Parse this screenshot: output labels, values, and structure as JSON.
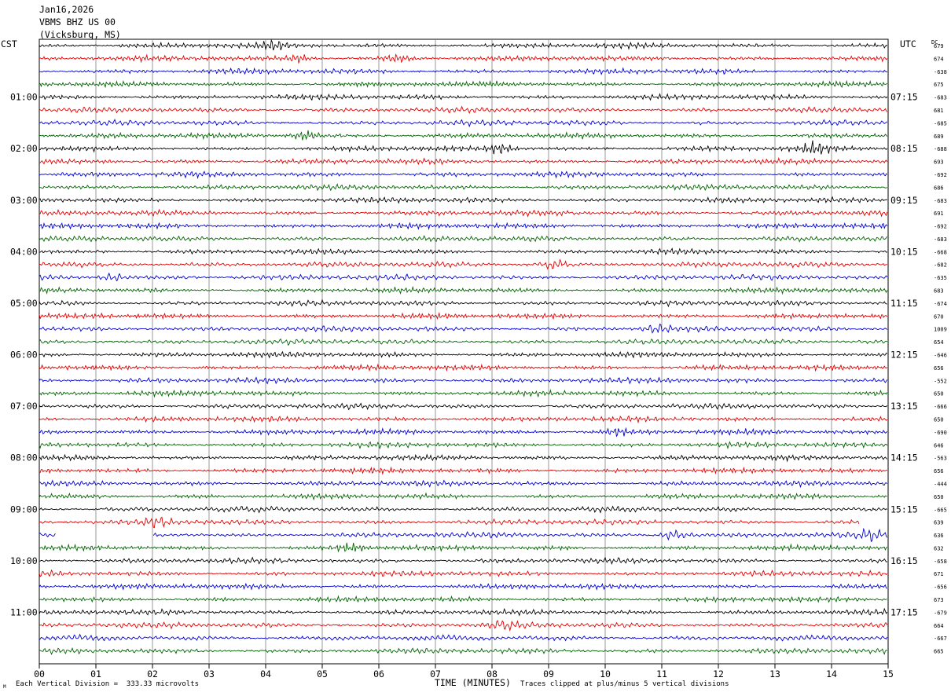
{
  "header": {
    "date": "Jan16,2026",
    "station": "VBMS BHZ US 00",
    "location": "(Vicksburg, MS)"
  },
  "left_tz": "CST",
  "right_tz": "UTC",
  "dc_label": "DC",
  "footer": {
    "scale": "Each Vertical Division =  333.33 microvolts",
    "xlabel": "TIME (MINUTES)",
    "clip_note": "Traces clipped at plus/minus 5 vertical divisions",
    "mark": "M"
  },
  "colors": {
    "black": "#000000",
    "red": "#e00000",
    "blue": "#0000d0",
    "green": "#006400",
    "grid": "#808080"
  },
  "chart_data": {
    "type": "line",
    "title": "",
    "xlabel": "TIME (MINUTES)",
    "xlim": [
      0,
      15
    ],
    "x_ticks": [
      "00",
      "01",
      "02",
      "03",
      "04",
      "05",
      "06",
      "07",
      "08",
      "09",
      "10",
      "11",
      "12",
      "13",
      "14",
      "15"
    ],
    "rows_per_hour": 4,
    "trace_color_cycle": [
      "black",
      "red",
      "blue",
      "green"
    ],
    "left_hour_labels": [
      "01:00",
      "02:00",
      "03:00",
      "04:00",
      "05:00",
      "06:00",
      "07:00",
      "08:00",
      "09:00",
      "10:00",
      "11:00"
    ],
    "right_hour_labels": [
      "07:15",
      "08:15",
      "09:15",
      "10:15",
      "11:15",
      "12:15",
      "13:15",
      "14:15",
      "15:15",
      "16:15",
      "17:15"
    ],
    "dc_offsets": [
      "679",
      "674",
      "-638",
      "675",
      "-683",
      "681",
      "-685",
      "689",
      "-688",
      "693",
      "-692",
      "686",
      "-683",
      "691",
      "-692",
      "-683",
      "-668",
      "-682",
      "-635",
      "683",
      "-674",
      "670",
      "1009",
      "654",
      "-646",
      "656",
      "-552",
      "650",
      "-666",
      "650",
      "-690",
      "646",
      "-563",
      "656",
      "-444",
      "650",
      "-665",
      "639",
      "636",
      "632",
      "-658",
      "671",
      "-656",
      "673",
      "-679",
      "664",
      "-667",
      "665"
    ],
    "events": [
      {
        "row": 0,
        "minute": 4.15,
        "amp": 1.6
      },
      {
        "row": 1,
        "minute": 4.6,
        "amp": 1.5
      },
      {
        "row": 1,
        "minute": 6.3,
        "amp": 1.3
      },
      {
        "row": 7,
        "minute": 4.7,
        "amp": 1.8
      },
      {
        "row": 8,
        "minute": 8.15,
        "amp": 2.0
      },
      {
        "row": 8,
        "minute": 13.7,
        "amp": 2.2
      },
      {
        "row": 17,
        "minute": 9.1,
        "amp": 1.6
      },
      {
        "row": 18,
        "minute": 1.3,
        "amp": 1.6
      },
      {
        "row": 22,
        "minute": 10.9,
        "amp": 1.4
      },
      {
        "row": 30,
        "minute": 10.2,
        "amp": 1.3
      },
      {
        "row": 37,
        "minute": 2.1,
        "amp": 1.8
      },
      {
        "row": 38,
        "minute": 11.2,
        "amp": 2.2
      },
      {
        "row": 38,
        "minute": 14.7,
        "amp": 2.0
      },
      {
        "row": 39,
        "minute": 5.5,
        "amp": 1.7
      },
      {
        "row": 45,
        "minute": 8.2,
        "amp": 1.4
      }
    ],
    "gaps": [
      {
        "row": 37,
        "from": 14.5,
        "to": 15
      },
      {
        "row": 38,
        "from": 0.3,
        "to": 2.0
      }
    ]
  }
}
